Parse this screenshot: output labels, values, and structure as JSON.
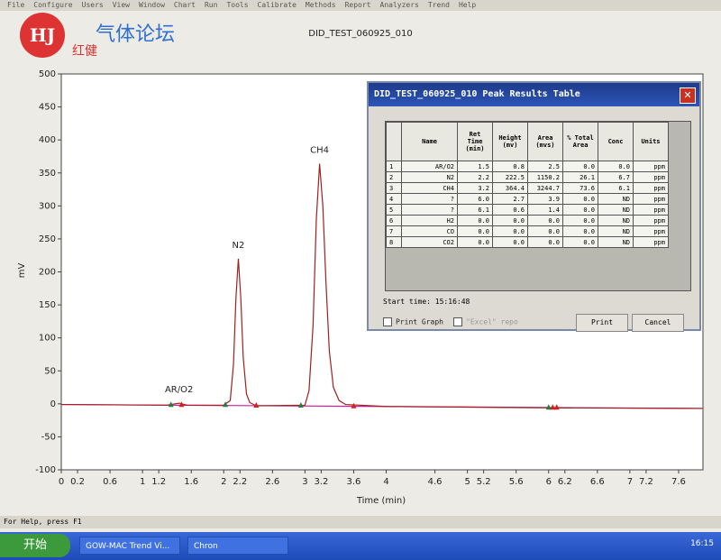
{
  "window": {
    "menu": [
      "File",
      "Configure",
      "Users",
      "View",
      "Window",
      "Chart",
      "Run",
      "Tools",
      "Calibrate",
      "Methods",
      "Report",
      "Analyzers",
      "Trend",
      "Help"
    ],
    "status": "For Help, press F1"
  },
  "watermark": {
    "logo": "HJ",
    "title": "气体论坛",
    "subtitle": "红健"
  },
  "chart_data": {
    "type": "line",
    "title": "DID_TEST_060925_010",
    "x_label": "Time (min)",
    "y_label": "mV",
    "xlim": [
      0,
      7.9
    ],
    "ylim": [
      -100,
      500
    ],
    "xticks": [
      0,
      0.2,
      0.6,
      1,
      1.2,
      1.6,
      2,
      2.2,
      2.6,
      3,
      3.2,
      3.6,
      4,
      4.6,
      5,
      5.2,
      5.6,
      6,
      6.2,
      6.6,
      7,
      7.2,
      7.6
    ],
    "yticks": [
      -100,
      -50,
      0,
      50,
      100,
      150,
      200,
      250,
      300,
      350,
      400,
      450,
      500
    ],
    "series": [
      {
        "color": "#a02020",
        "x": [
          0,
          1.3,
          1.45,
          1.55,
          2.0,
          2.08,
          2.12,
          2.15,
          2.18,
          2.21,
          2.24,
          2.28,
          2.32,
          2.4,
          3.0,
          3.05,
          3.1,
          3.14,
          3.18,
          3.22,
          3.26,
          3.3,
          3.35,
          3.42,
          3.5,
          4.0,
          5.0,
          6.0,
          7.9
        ],
        "values": [
          -1,
          -2,
          1,
          -2,
          -2,
          5,
          60,
          160,
          220,
          160,
          70,
          15,
          2,
          -3,
          -2,
          20,
          120,
          280,
          364,
          300,
          180,
          80,
          25,
          5,
          -1,
          -4,
          -5,
          -6,
          -7
        ]
      },
      {
        "color": "#d020a0",
        "x": [
          0,
          7.9
        ],
        "values": [
          -1,
          -7
        ]
      }
    ],
    "markers": [
      {
        "x": 1.35,
        "y": -2,
        "color": "#208040"
      },
      {
        "x": 1.48,
        "y": -2,
        "color": "#d02020"
      },
      {
        "x": 2.02,
        "y": -2,
        "color": "#208040"
      },
      {
        "x": 2.4,
        "y": -3,
        "color": "#d02020"
      },
      {
        "x": 2.95,
        "y": -3,
        "color": "#208040"
      },
      {
        "x": 3.6,
        "y": -4,
        "color": "#d02020"
      },
      {
        "x": 6.0,
        "y": -6,
        "color": "#208040"
      },
      {
        "x": 6.05,
        "y": -6,
        "color": "#d02020"
      },
      {
        "x": 6.1,
        "y": -6,
        "color": "#d02020"
      }
    ],
    "annotations": [
      {
        "text": "AR/O2",
        "x": 1.45,
        "y": 1
      },
      {
        "text": "N2",
        "x": 2.18,
        "y": 220
      },
      {
        "text": "CH4",
        "x": 3.18,
        "y": 364
      }
    ]
  },
  "dialog": {
    "title": "DID_TEST_060925_010 Peak Results Table",
    "table": {
      "columns": [
        "Name",
        "Ret Time (min)",
        "Height (mv)",
        "Area (mvs)",
        "% Total Area",
        "Conc",
        "Units"
      ],
      "rows": [
        [
          "1",
          "AR/O2",
          "1.5",
          "0.8",
          "2.5",
          "0.0",
          "0.0",
          "ppm"
        ],
        [
          "2",
          "N2",
          "2.2",
          "222.5",
          "1150.2",
          "26.1",
          "6.7",
          "ppm"
        ],
        [
          "3",
          "CH4",
          "3.2",
          "364.4",
          "3244.7",
          "73.6",
          "6.1",
          "ppm"
        ],
        [
          "4",
          "?",
          "6.0",
          "2.7",
          "3.9",
          "0.0",
          "ND",
          "ppm"
        ],
        [
          "5",
          "?",
          "6.1",
          "0.6",
          "1.4",
          "0.0",
          "ND",
          "ppm"
        ],
        [
          "6",
          "H2",
          "0.0",
          "0.0",
          "0.0",
          "0.0",
          "ND",
          "ppm"
        ],
        [
          "7",
          "CO",
          "0.0",
          "0.0",
          "0.0",
          "0.0",
          "ND",
          "ppm"
        ],
        [
          "8",
          "CO2",
          "0.0",
          "0.0",
          "0.0",
          "0.0",
          "ND",
          "ppm"
        ]
      ]
    },
    "start_time": "Start time: 15:16:48",
    "options": [
      "Print Graph",
      "\"Excel\" repo"
    ],
    "buttons": [
      "Print",
      "Cancel"
    ]
  },
  "taskbar": {
    "start": "开始",
    "tasks": [
      "GOW-MAC Trend Vi...",
      "Chron"
    ],
    "clock": "16:15"
  }
}
